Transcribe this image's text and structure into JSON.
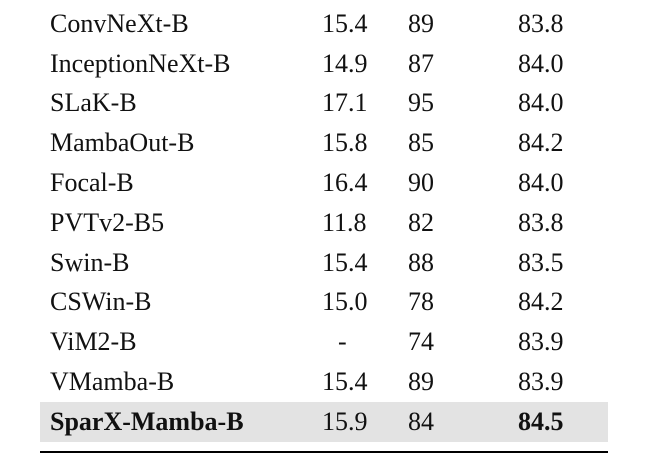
{
  "table": {
    "rows": [
      {
        "model": "ConvNeXt-B",
        "flops": "15.4",
        "throughput": "89",
        "accuracy": "83.8"
      },
      {
        "model": "InceptionNeXt-B",
        "flops": "14.9",
        "throughput": "87",
        "accuracy": "84.0"
      },
      {
        "model": "SLaK-B",
        "flops": "17.1",
        "throughput": "95",
        "accuracy": "84.0"
      },
      {
        "model": "MambaOut-B",
        "flops": "15.8",
        "throughput": "85",
        "accuracy": "84.2"
      },
      {
        "model": "Focal-B",
        "flops": "16.4",
        "throughput": "90",
        "accuracy": "84.0"
      },
      {
        "model": "PVTv2-B5",
        "flops": "11.8",
        "throughput": "82",
        "accuracy": "83.8"
      },
      {
        "model": "Swin-B",
        "flops": "15.4",
        "throughput": "88",
        "accuracy": "83.5"
      },
      {
        "model": "CSWin-B",
        "flops": "15.0",
        "throughput": "78",
        "accuracy": "84.2"
      },
      {
        "model": "ViM2-B",
        "flops": "-",
        "throughput": "74",
        "accuracy": "83.9"
      },
      {
        "model": "VMamba-B",
        "flops": "15.4",
        "throughput": "89",
        "accuracy": "83.9"
      },
      {
        "model": "SparX-Mamba-B",
        "flops": "15.9",
        "throughput": "84",
        "accuracy": "84.5",
        "highlighted": true
      }
    ]
  },
  "colors": {
    "highlight_row": "#e3e3e3",
    "text": "#111111",
    "rule": "#000000"
  }
}
